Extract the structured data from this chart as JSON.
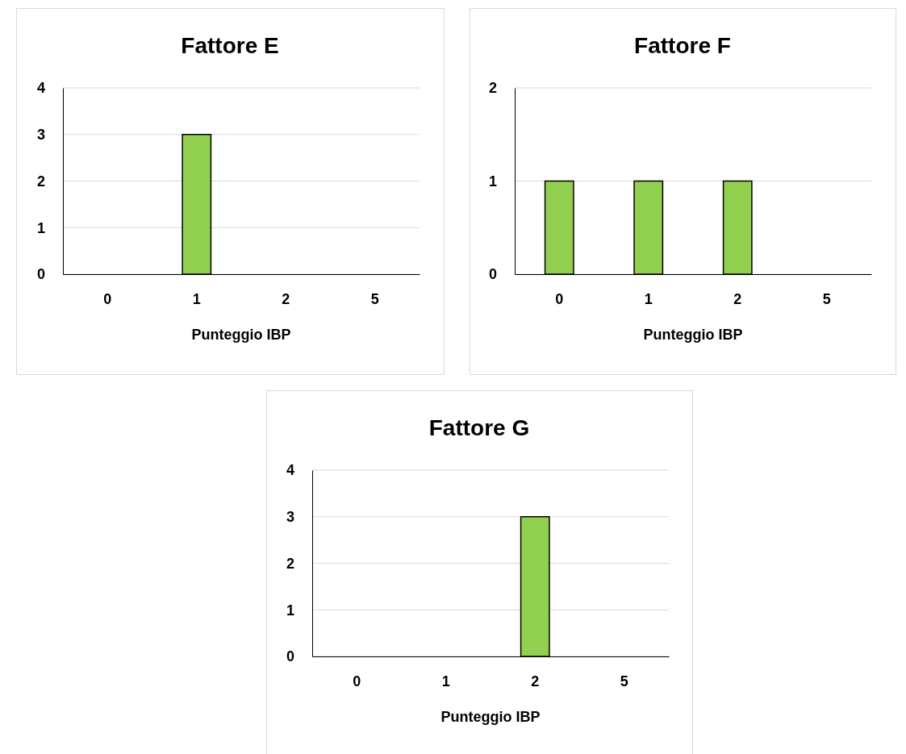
{
  "chart_data": [
    {
      "type": "bar",
      "title": "Fattore E",
      "xlabel": "Punteggio IBP",
      "categories": [
        "0",
        "1",
        "2",
        "5"
      ],
      "values": [
        0,
        3,
        0,
        0
      ],
      "color": "#92d050",
      "ylim": [
        0,
        4
      ],
      "yticks": [
        0,
        1,
        2,
        3,
        4
      ],
      "grid": "y"
    },
    {
      "type": "bar",
      "title": "Fattore F",
      "xlabel": "Punteggio IBP",
      "categories": [
        "0",
        "1",
        "2",
        "5"
      ],
      "values": [
        1,
        1,
        1,
        0
      ],
      "color": "#92d050",
      "ylim": [
        0,
        2
      ],
      "yticks": [
        0,
        1,
        2
      ],
      "grid": "y"
    },
    {
      "type": "bar",
      "title": "Fattore G",
      "xlabel": "Punteggio IBP",
      "categories": [
        "0",
        "1",
        "2",
        "5"
      ],
      "values": [
        0,
        0,
        3,
        0
      ],
      "color": "#92d050",
      "ylim": [
        0,
        4
      ],
      "yticks": [
        0,
        1,
        2,
        3,
        4
      ],
      "grid": "y"
    }
  ]
}
